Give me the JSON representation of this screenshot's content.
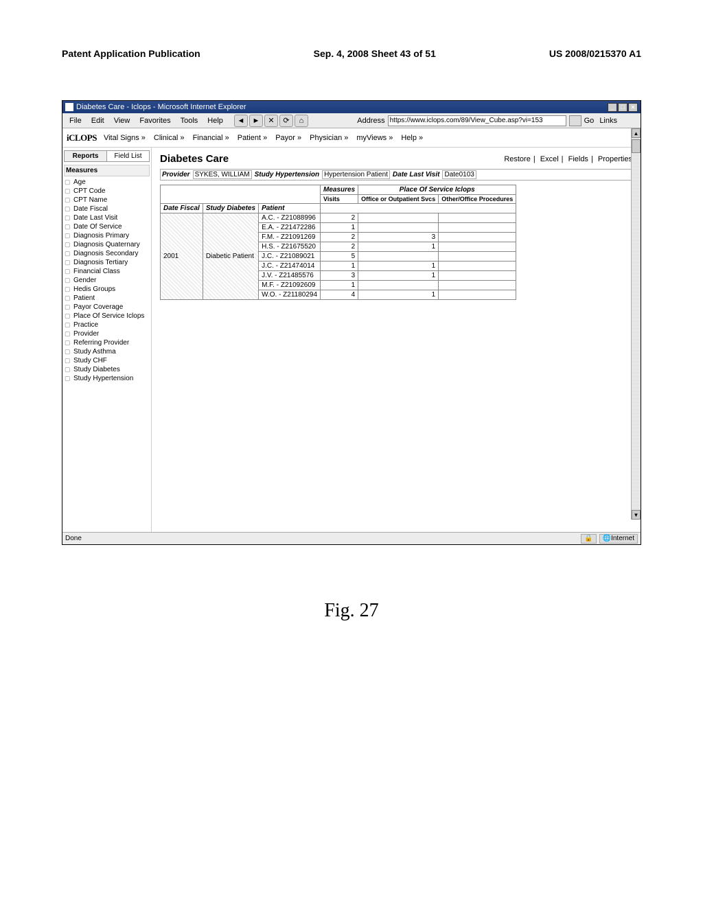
{
  "publication": {
    "left": "Patent Application Publication",
    "center": "Sep. 4, 2008  Sheet 43 of 51",
    "right": "US 2008/0215370 A1"
  },
  "window": {
    "title": "Diabetes Care - Iclops - Microsoft Internet Explorer",
    "minimize": "_",
    "maximize": "□",
    "close": "×"
  },
  "menubar": {
    "items": [
      "File",
      "Edit",
      "View",
      "Favorites",
      "Tools",
      "Help"
    ],
    "address_label": "Address",
    "address_value": "https://www.iclops.com/89/View_Cube.asp?vi=153",
    "go": "Go",
    "links": "Links"
  },
  "app": {
    "logo": "iCLOPS",
    "nav": [
      "Vital Signs »",
      "Clinical »",
      "Financial »",
      "Patient »",
      "Payor »",
      "Physician »",
      "myViews »",
      "Help »"
    ]
  },
  "sidebar": {
    "tabs": {
      "reports": "Reports",
      "fieldlist": "Field List"
    },
    "measures_label": "Measures",
    "items": [
      "Age",
      "CPT Code",
      "CPT Name",
      "Date Fiscal",
      "Date Last Visit",
      "Date Of Service",
      "Diagnosis Primary",
      "Diagnosis Quaternary",
      "Diagnosis Secondary",
      "Diagnosis Tertiary",
      "Financial Class",
      "Gender",
      "Hedis Groups",
      "Patient",
      "Payor Coverage",
      "Place Of Service Iclops",
      "Practice",
      "Provider",
      "Referring Provider",
      "Study Asthma",
      "Study CHF",
      "Study Diabetes",
      "Study Hypertension"
    ]
  },
  "content": {
    "title": "Diabetes Care",
    "actions": [
      "Restore",
      "Excel",
      "Fields",
      "Properties"
    ],
    "filters": {
      "provider_lbl": "Provider",
      "provider_val": "SYKES, WILLIAM",
      "study_lbl": "Study Hypertension",
      "study_val": "Hypertension Patient",
      "date_lbl": "Date Last Visit",
      "date_val": "Date0103"
    },
    "pivot": {
      "col_super": "Measures",
      "col_super2": "Place Of Service Iclops",
      "col1": "Visits",
      "col2": "Office or Outpatient Svcs",
      "col3": "Other/Office Procedures",
      "row_heads": [
        "Date Fiscal",
        "Study Diabetes",
        "Patient"
      ],
      "year": "2001",
      "study": "Diabetic Patient",
      "rows": [
        {
          "p": "A.C. - Z21088996",
          "v": "2",
          "o": ""
        },
        {
          "p": "E.A. - Z21472286",
          "v": "1",
          "o": ""
        },
        {
          "p": "F.M. - Z21091269",
          "v": "2",
          "o": "3"
        },
        {
          "p": "H.S. - Z21675520",
          "v": "2",
          "o": "1"
        },
        {
          "p": "J.C. - Z21089021",
          "v": "5",
          "o": ""
        },
        {
          "p": "J.C. - Z21474014",
          "v": "1",
          "o": "1"
        },
        {
          "p": "J.V. - Z21485576",
          "v": "3",
          "o": "1"
        },
        {
          "p": "M.F. - Z21092609",
          "v": "1",
          "o": ""
        },
        {
          "p": "W.O. - Z21180294",
          "v": "4",
          "o": "1"
        }
      ]
    }
  },
  "statusbar": {
    "done": "Done",
    "zone": "Internet"
  },
  "figure": "Fig. 27"
}
